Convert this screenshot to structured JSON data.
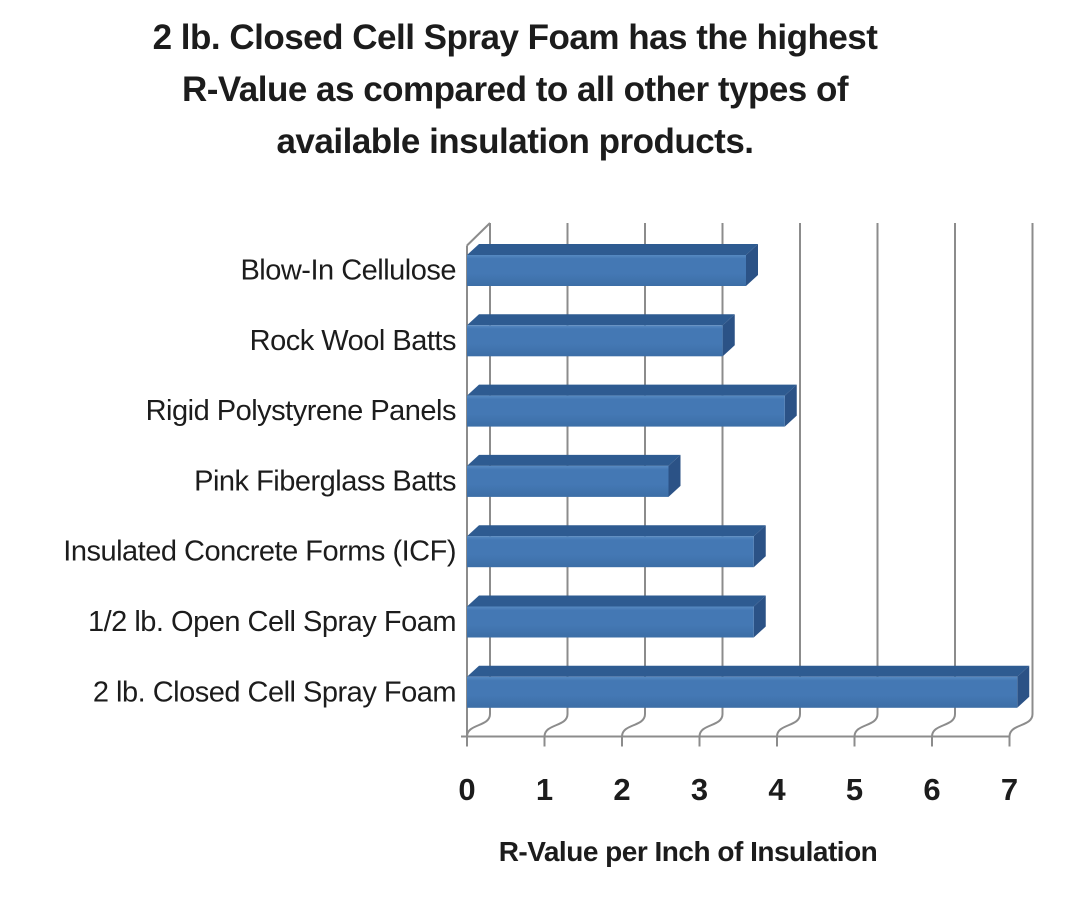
{
  "title": {
    "lines": [
      "2 lb. Closed Cell Spray Foam has the highest",
      "R-Value as compared to all other types of",
      "available insulation products."
    ]
  },
  "chart_data": {
    "type": "bar",
    "orientation": "horizontal",
    "style": "3d",
    "categories": [
      "Blow-In Cellulose",
      "Rock Wool Batts",
      "Rigid Polystyrene Panels",
      "Pink Fiberglass Batts",
      "Insulated Concrete Forms (ICF)",
      "1/2 lb. Open Cell Spray Foam",
      "2 lb. Closed Cell Spray Foam"
    ],
    "values": [
      3.6,
      3.3,
      4.1,
      2.6,
      3.7,
      3.7,
      7.1
    ],
    "x_ticks": [
      "0",
      "1",
      "2",
      "3",
      "4",
      "5",
      "6",
      "7"
    ],
    "xlim": [
      0,
      7
    ],
    "grid": true,
    "legend": false,
    "xlabel": "R-Value per Inch of Insulation",
    "ylabel": "",
    "colors": {
      "bar_face": "#4478b4",
      "bar_face_light": "#578ac2",
      "bar_face_dark": "#3c6ea6",
      "bar_top": "#2e5b91",
      "bar_side": "#2b5286",
      "gridline": "#8c8c8c",
      "text": "#1c1c1c"
    }
  }
}
